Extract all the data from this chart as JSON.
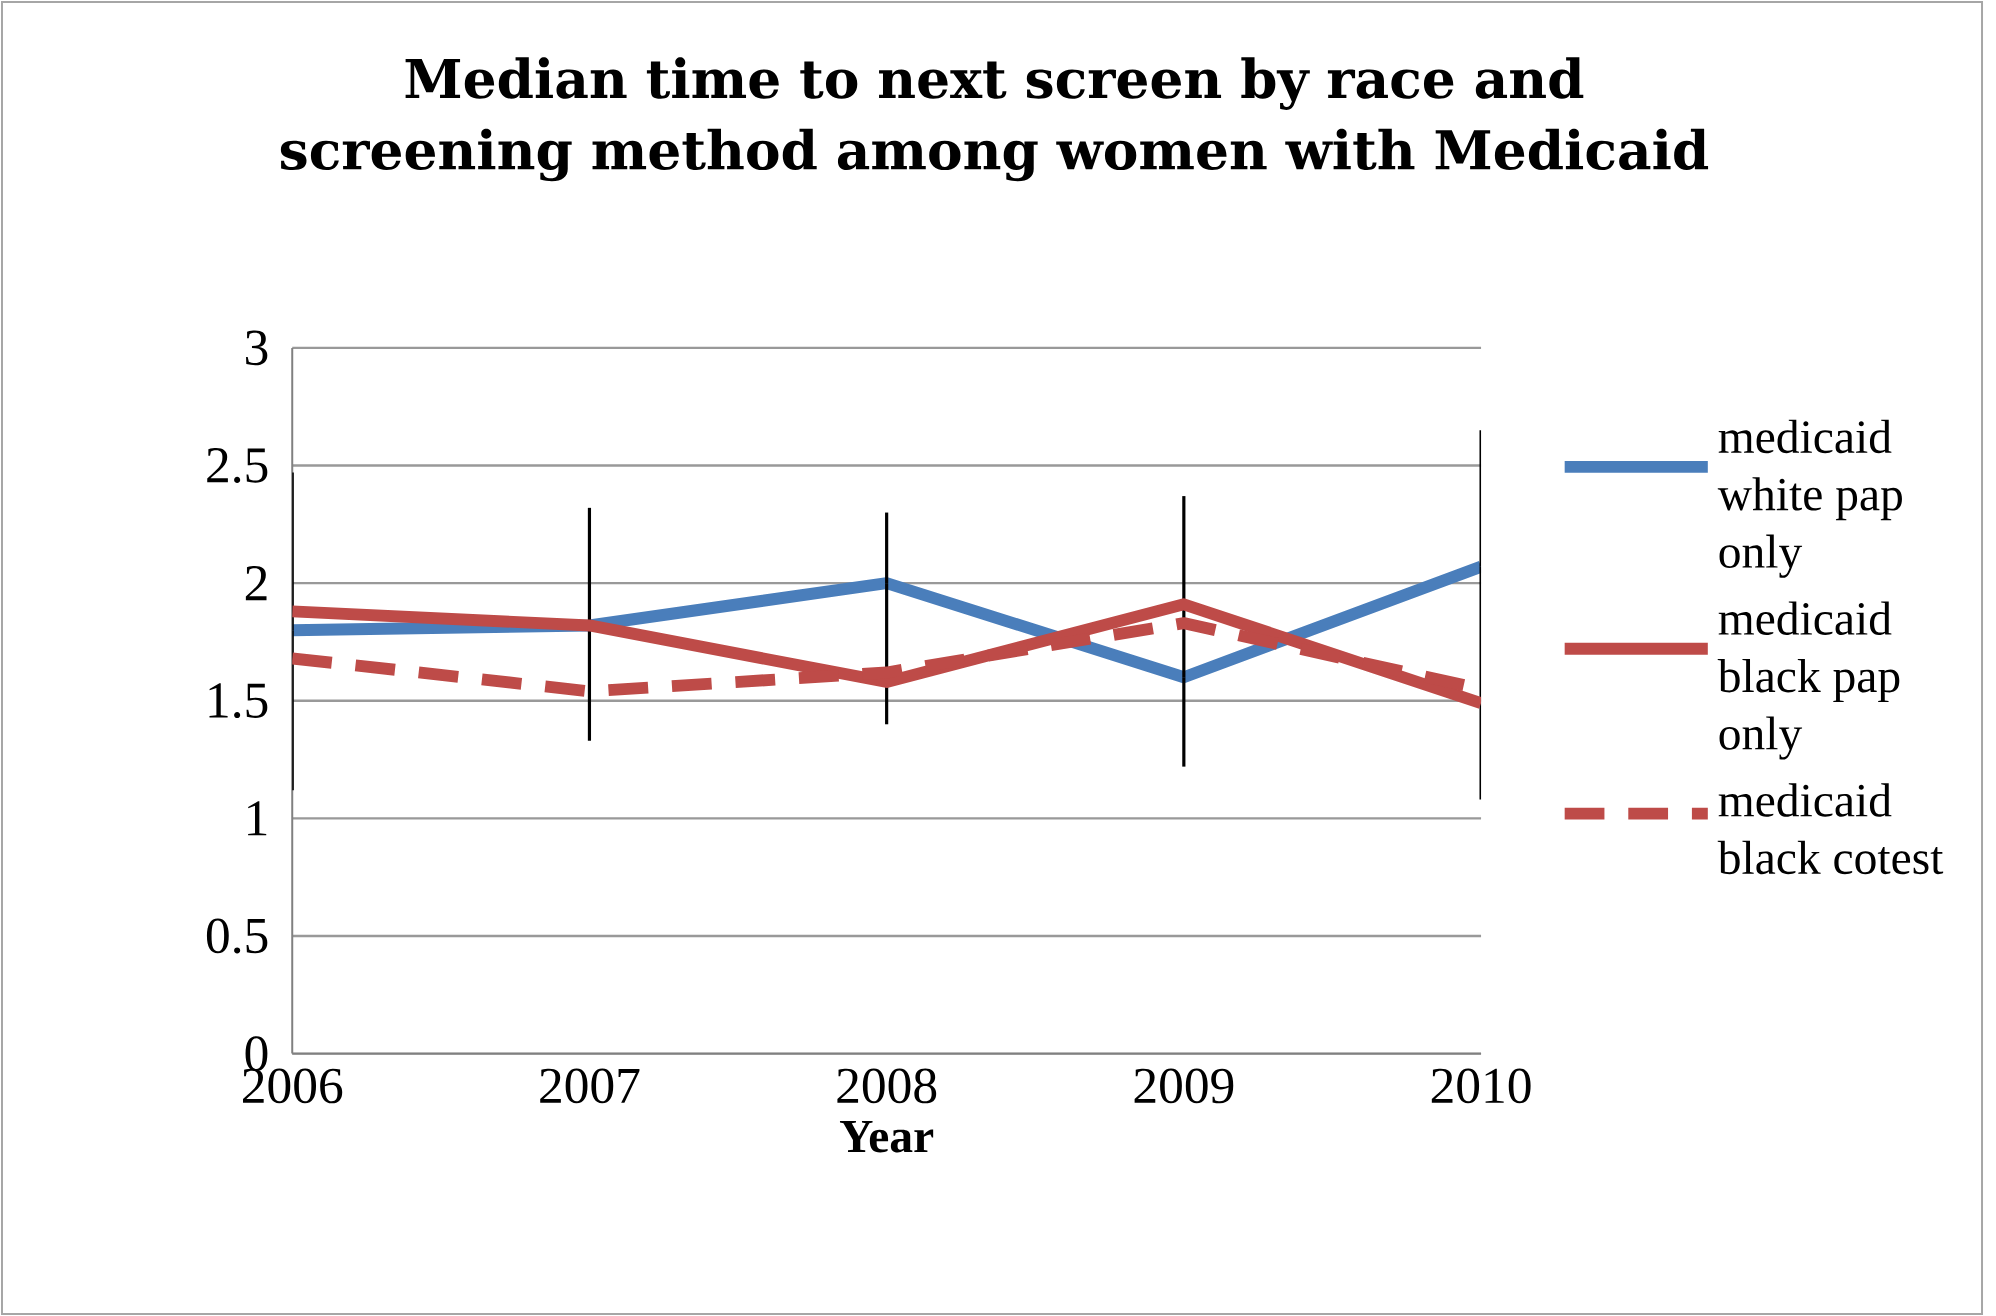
{
  "chart_data": {
    "type": "line",
    "title": "Median time to next screen by race and screening method among women with Medicaid",
    "xlabel": "Year",
    "x": [
      2006,
      2007,
      2008,
      2009,
      2010
    ],
    "xlim": [
      2006,
      2010
    ],
    "xticks": [
      2006,
      2007,
      2008,
      2009,
      2010
    ],
    "ylim": [
      0,
      3
    ],
    "yticks": [
      0,
      0.5,
      1,
      1.5,
      2,
      2.5,
      3
    ],
    "grid": "y",
    "legend": "right",
    "marker": "none",
    "series": [
      {
        "name": "medicaid white pap only",
        "color": "#4a7ebb",
        "line_style": "solid",
        "values": [
          1.8,
          1.82,
          2.0,
          1.6,
          2.07
        ],
        "errors": [
          [
            1.12,
            2.47
          ],
          [
            1.33,
            2.32
          ],
          [
            1.4,
            2.3
          ],
          [
            1.22,
            2.37
          ],
          [
            1.08,
            2.65
          ]
        ]
      },
      {
        "name": "medicaid black pap only",
        "color": "#be4b48",
        "line_style": "solid",
        "values": [
          1.88,
          1.82,
          1.58,
          1.91,
          1.49
        ]
      },
      {
        "name": "medicaid black cotest",
        "color": "#be4b48",
        "line_style": "dashed",
        "values": [
          1.68,
          1.54,
          1.62,
          1.83,
          1.55
        ]
      }
    ]
  }
}
